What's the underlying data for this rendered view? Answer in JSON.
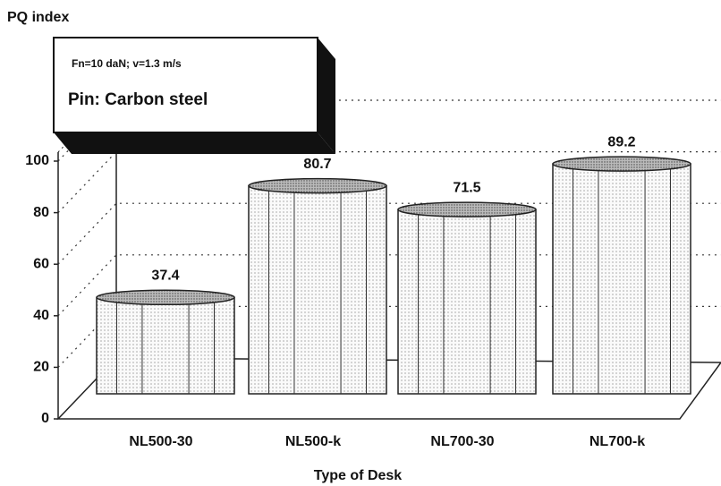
{
  "chart_data": {
    "type": "bar",
    "y_label": "PQ index",
    "x_label": "Type of Desk",
    "annotations": [
      "Fn=10 daN; v=1.3 m/s",
      "Pin: Carbon steel"
    ],
    "categories": [
      "NL500-30",
      "NL500-k",
      "NL700-30",
      "NL700-k"
    ],
    "values": [
      37.4,
      80.7,
      71.5,
      89.2
    ],
    "color": "#f2f2f2",
    "ylim": [
      0,
      100
    ],
    "yticks": [
      0,
      20,
      40,
      60,
      80,
      100
    ],
    "grid": true
  }
}
